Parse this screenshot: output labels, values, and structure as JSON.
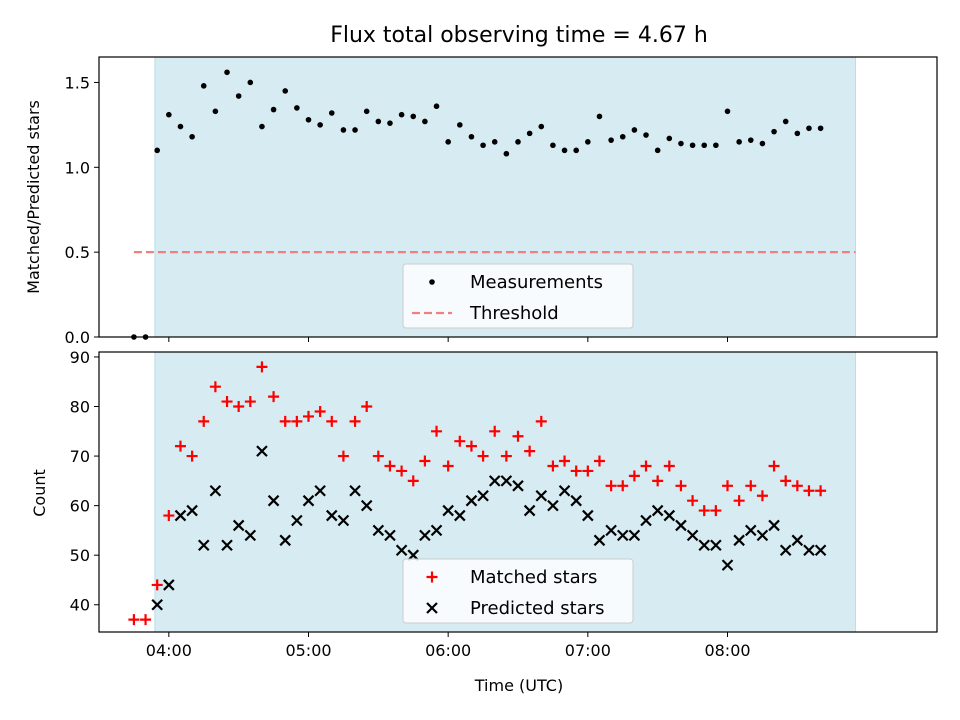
{
  "chart_data": [
    {
      "type": "scatter",
      "title": "Flux total observing time = 4.67 h",
      "ylabel": "Matched/Predicted stars",
      "xlabel": "",
      "xlim": [
        "03:30",
        "09:30"
      ],
      "ylim": [
        0,
        1.65
      ],
      "yticks": [
        "0.0",
        "0.5",
        "1.0",
        "1.5"
      ],
      "xticks": [
        "04:00",
        "05:00",
        "06:00",
        "07:00",
        "08:00"
      ],
      "shaded_span": [
        "03:54",
        "08:55"
      ],
      "shade_color": "#add8e6",
      "legend": {
        "position": "lower center",
        "entries": [
          "Measurements",
          "Threshold"
        ]
      },
      "series": [
        {
          "name": "Measurements",
          "marker": "dot",
          "color": "#000000",
          "x": [
            "03:45",
            "03:50",
            "03:55",
            "04:00",
            "04:05",
            "04:10",
            "04:15",
            "04:20",
            "04:25",
            "04:30",
            "04:35",
            "04:40",
            "04:45",
            "04:50",
            "04:55",
            "05:00",
            "05:05",
            "05:10",
            "05:15",
            "05:20",
            "05:25",
            "05:30",
            "05:35",
            "05:40",
            "05:45",
            "05:50",
            "05:55",
            "06:00",
            "06:05",
            "06:10",
            "06:15",
            "06:20",
            "06:25",
            "06:30",
            "06:35",
            "06:40",
            "06:45",
            "06:50",
            "06:55",
            "07:00",
            "07:05",
            "07:10",
            "07:15",
            "07:20",
            "07:25",
            "07:30",
            "07:35",
            "07:40",
            "07:45",
            "07:50",
            "07:55",
            "08:00",
            "08:05",
            "08:10",
            "08:15",
            "08:20",
            "08:25",
            "08:30",
            "08:35",
            "08:40"
          ],
          "y": [
            0.0,
            0.0,
            1.1,
            1.31,
            1.24,
            1.18,
            1.48,
            1.33,
            1.56,
            1.42,
            1.5,
            1.24,
            1.34,
            1.45,
            1.35,
            1.28,
            1.25,
            1.32,
            1.22,
            1.22,
            1.33,
            1.27,
            1.26,
            1.31,
            1.3,
            1.27,
            1.36,
            1.15,
            1.25,
            1.18,
            1.13,
            1.15,
            1.08,
            1.15,
            1.2,
            1.24,
            1.13,
            1.1,
            1.1,
            1.15,
            1.3,
            1.16,
            1.18,
            1.22,
            1.19,
            1.1,
            1.17,
            1.14,
            1.13,
            1.13,
            1.13,
            1.33,
            1.15,
            1.16,
            1.14,
            1.21,
            1.27,
            1.2,
            1.23,
            1.23
          ]
        },
        {
          "name": "Threshold",
          "marker": "dashed-line",
          "color": "#f08080",
          "x": [
            "03:45",
            "08:55"
          ],
          "y": [
            0.5,
            0.5
          ]
        }
      ]
    },
    {
      "type": "scatter",
      "title": "",
      "ylabel": "Count",
      "xlabel": "Time (UTC)",
      "xlim": [
        "03:30",
        "09:30"
      ],
      "ylim": [
        34.5,
        91
      ],
      "yticks": [
        "40",
        "50",
        "60",
        "70",
        "80",
        "90"
      ],
      "xticks": [
        "04:00",
        "05:00",
        "06:00",
        "07:00",
        "08:00"
      ],
      "shaded_span": [
        "03:54",
        "08:55"
      ],
      "shade_color": "#add8e6",
      "legend": {
        "position": "lower center",
        "entries": [
          "Matched stars",
          "Predicted stars"
        ]
      },
      "series": [
        {
          "name": "Matched stars",
          "marker": "plus",
          "color": "#ff0000",
          "x": [
            "03:45",
            "03:50",
            "03:55",
            "04:00",
            "04:05",
            "04:10",
            "04:15",
            "04:20",
            "04:25",
            "04:30",
            "04:35",
            "04:40",
            "04:45",
            "04:50",
            "04:55",
            "05:00",
            "05:05",
            "05:10",
            "05:15",
            "05:20",
            "05:25",
            "05:30",
            "05:35",
            "05:40",
            "05:45",
            "05:50",
            "05:55",
            "06:00",
            "06:05",
            "06:10",
            "06:15",
            "06:20",
            "06:25",
            "06:30",
            "06:35",
            "06:40",
            "06:45",
            "06:50",
            "06:55",
            "07:00",
            "07:05",
            "07:10",
            "07:15",
            "07:20",
            "07:25",
            "07:30",
            "07:35",
            "07:40",
            "07:45",
            "07:50",
            "07:55",
            "08:00",
            "08:05",
            "08:10",
            "08:15",
            "08:20",
            "08:25",
            "08:30",
            "08:35",
            "08:40"
          ],
          "y": [
            37,
            37,
            44,
            58,
            72,
            70,
            77,
            84,
            81,
            80,
            81,
            88,
            82,
            77,
            77,
            78,
            79,
            77,
            70,
            77,
            80,
            70,
            68,
            67,
            65,
            69,
            75,
            68,
            73,
            72,
            70,
            75,
            70,
            74,
            71,
            77,
            68,
            69,
            67,
            67,
            69,
            64,
            64,
            66,
            68,
            65,
            68,
            64,
            61,
            59,
            59,
            64,
            61,
            64,
            62,
            68,
            65,
            64,
            63,
            63
          ]
        },
        {
          "name": "Predicted stars",
          "marker": "x",
          "color": "#000000",
          "x": [
            "03:55",
            "04:00",
            "04:05",
            "04:10",
            "04:15",
            "04:20",
            "04:25",
            "04:30",
            "04:35",
            "04:40",
            "04:45",
            "04:50",
            "04:55",
            "05:00",
            "05:05",
            "05:10",
            "05:15",
            "05:20",
            "05:25",
            "05:30",
            "05:35",
            "05:40",
            "05:45",
            "05:50",
            "05:55",
            "06:00",
            "06:05",
            "06:10",
            "06:15",
            "06:20",
            "06:25",
            "06:30",
            "06:35",
            "06:40",
            "06:45",
            "06:50",
            "06:55",
            "07:00",
            "07:05",
            "07:10",
            "07:15",
            "07:20",
            "07:25",
            "07:30",
            "07:35",
            "07:40",
            "07:45",
            "07:50",
            "07:55",
            "08:00",
            "08:05",
            "08:10",
            "08:15",
            "08:20",
            "08:25",
            "08:30",
            "08:35",
            "08:40"
          ],
          "y": [
            40,
            44,
            58,
            59,
            52,
            63,
            52,
            56,
            54,
            71,
            61,
            53,
            57,
            61,
            63,
            58,
            57,
            63,
            60,
            55,
            54,
            51,
            50,
            54,
            55,
            59,
            58,
            61,
            62,
            65,
            65,
            64,
            59,
            62,
            60,
            63,
            61,
            58,
            53,
            55,
            54,
            54,
            57,
            59,
            58,
            56,
            54,
            52,
            52,
            48,
            53,
            55,
            54,
            56,
            51,
            53,
            51,
            51
          ]
        }
      ]
    }
  ]
}
